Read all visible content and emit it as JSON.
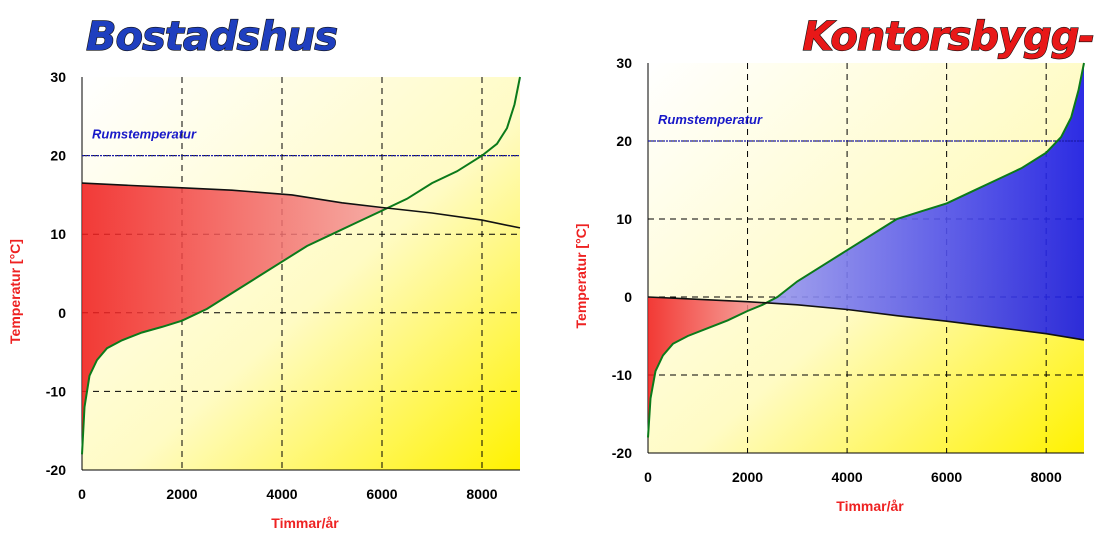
{
  "colors": {
    "title_left": "#1f3fbf",
    "title_right": "#e81818",
    "axis_label": "#ee2222",
    "annotation": "#1818c8",
    "room_line": "#1a1aa8",
    "outdoor_curve": "#0b7a1a",
    "indoor_curve": "#111111",
    "heating_fill": "#f01e1e",
    "cooling_fill": "#1a1af0",
    "bg_light": "#fffde0",
    "bg_dark": "#fff200"
  },
  "chart_data": [
    {
      "type": "area",
      "title": "Bostadshus",
      "xlabel": "Timmar/år",
      "ylabel": "Temperatur [°C]",
      "xlim": [
        0,
        8760
      ],
      "ylim": [
        -20,
        30
      ],
      "xticks": [
        "0",
        "2000",
        "4000",
        "6000",
        "8000"
      ],
      "yticks": [
        "-20",
        "-10",
        "0",
        "10",
        "20",
        "30"
      ],
      "grid": "dashed",
      "annotation": "Rumstemperatur",
      "room_temperature": 20,
      "series": [
        {
          "role": "outdoor",
          "x": [
            0,
            50,
            150,
            300,
            500,
            800,
            1200,
            1600,
            2000,
            2500,
            3000,
            3500,
            4000,
            4500,
            5000,
            5500,
            6000,
            6500,
            7000,
            7500,
            8000,
            8300,
            8500,
            8650,
            8760
          ],
          "y": [
            -18,
            -12,
            -8,
            -6,
            -4.5,
            -3.5,
            -2.5,
            -1.8,
            -1,
            0.5,
            2.5,
            4.5,
            6.5,
            8.5,
            10,
            11.5,
            13,
            14.5,
            16.5,
            18,
            20,
            21.5,
            23.5,
            26.5,
            30
          ]
        },
        {
          "role": "indoor",
          "x": [
            0,
            1000,
            2000,
            3000,
            4200,
            5200,
            6000,
            7000,
            8000,
            8760
          ],
          "y": [
            16.5,
            16.2,
            15.9,
            15.6,
            15,
            14,
            13.4,
            12.7,
            11.8,
            10.8
          ]
        }
      ]
    },
    {
      "type": "area",
      "title": "Kontorsbygg-",
      "xlabel": "Timmar/år",
      "ylabel": "Temperatur [°C]",
      "xlim": [
        0,
        8760
      ],
      "ylim": [
        -20,
        30
      ],
      "xticks": [
        "0",
        "2000",
        "4000",
        "6000",
        "8000"
      ],
      "yticks": [
        "-20",
        "-10",
        "0",
        "10",
        "20",
        "30"
      ],
      "grid": "dashed",
      "annotation": "Rumstemperatur",
      "room_temperature": 20,
      "series": [
        {
          "role": "outdoor",
          "x": [
            0,
            50,
            150,
            300,
            500,
            800,
            1200,
            1600,
            2000,
            2300,
            2600,
            3000,
            3500,
            4000,
            4500,
            5000,
            5500,
            6000,
            6500,
            7000,
            7500,
            8000,
            8300,
            8500,
            8650,
            8760
          ],
          "y": [
            -18,
            -13,
            -9.5,
            -7.5,
            -6,
            -5,
            -4,
            -3,
            -1.8,
            -1,
            0,
            2,
            4,
            6,
            8,
            10,
            11,
            12,
            13.5,
            15,
            16.5,
            18.5,
            20.5,
            23,
            26.5,
            30
          ]
        },
        {
          "role": "indoor",
          "x": [
            0,
            1000,
            2000,
            3000,
            4000,
            5000,
            6000,
            7000,
            8000,
            8760
          ],
          "y": [
            0,
            -0.3,
            -0.6,
            -1,
            -1.6,
            -2.4,
            -3.1,
            -3.9,
            -4.7,
            -5.5
          ]
        }
      ]
    }
  ]
}
